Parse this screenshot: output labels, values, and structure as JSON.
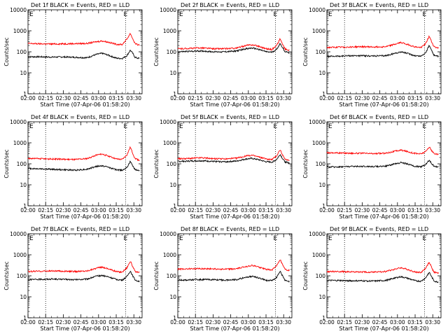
{
  "figure": {
    "x_tick_labels": [
      "02:00",
      "02:15",
      "02:30",
      "02:45",
      "03:00",
      "03:15",
      "03:30"
    ],
    "x_label": "Start Time (07-Apr-06 01:58:20)",
    "y_label": "Counts/sec",
    "y_tick_labels": [
      "1",
      "10",
      "100",
      "1000",
      "10000"
    ],
    "edge_marker_left": "E",
    "edge_marker_right": "E",
    "colors": {
      "events": "#000000",
      "lld": "#ff0000",
      "guides": "#000000"
    }
  },
  "chart_data": [
    {
      "type": "line",
      "title": "Det 1f BLACK = Events, RED = LLD",
      "x_unit": "minutes after 02:00",
      "xlim": [
        0,
        97
      ],
      "ylim": [
        1,
        10000
      ],
      "log_y": true,
      "guide_lines_x": [
        15,
        83
      ],
      "series": [
        {
          "name": "Events",
          "color": "#000000",
          "x": [
            0,
            10,
            20,
            30,
            40,
            50,
            58,
            63,
            68,
            75,
            80,
            84,
            87,
            89,
            91,
            93,
            95
          ],
          "y": [
            58,
            58,
            56,
            57,
            55,
            52,
            75,
            85,
            70,
            50,
            48,
            65,
            120,
            85,
            55,
            50,
            48
          ]
        },
        {
          "name": "LLD",
          "color": "#ff0000",
          "x": [
            0,
            10,
            20,
            30,
            40,
            50,
            58,
            63,
            68,
            75,
            80,
            84,
            87,
            89,
            91,
            93,
            95
          ],
          "y": [
            250,
            240,
            235,
            240,
            245,
            250,
            300,
            330,
            290,
            230,
            220,
            400,
            750,
            420,
            250,
            220,
            210
          ]
        }
      ]
    },
    {
      "type": "line",
      "title": "Det 2f BLACK = Events, RED = LLD",
      "x_unit": "minutes after 02:00",
      "xlim": [
        0,
        97
      ],
      "ylim": [
        1,
        10000
      ],
      "log_y": true,
      "guide_lines_x": [
        15,
        83
      ],
      "series": [
        {
          "name": "Events",
          "color": "#000000",
          "x": [
            0,
            10,
            20,
            30,
            40,
            50,
            58,
            63,
            68,
            75,
            80,
            84,
            87,
            89,
            91,
            93,
            95
          ],
          "y": [
            100,
            105,
            110,
            100,
            100,
            110,
            140,
            150,
            135,
            100,
            95,
            130,
            250,
            160,
            105,
            95,
            90
          ]
        },
        {
          "name": "LLD",
          "color": "#ff0000",
          "x": [
            0,
            10,
            20,
            30,
            40,
            50,
            58,
            63,
            68,
            75,
            80,
            84,
            87,
            89,
            91,
            93,
            95
          ],
          "y": [
            140,
            145,
            155,
            140,
            140,
            150,
            200,
            215,
            190,
            140,
            130,
            200,
            420,
            230,
            140,
            125,
            120
          ]
        }
      ]
    },
    {
      "type": "line",
      "title": "Det 3f BLACK = Events, RED = LLD",
      "x_unit": "minutes after 02:00",
      "xlim": [
        0,
        97
      ],
      "ylim": [
        1,
        10000
      ],
      "log_y": true,
      "guide_lines_x": [
        15,
        83
      ],
      "series": [
        {
          "name": "Events",
          "color": "#000000",
          "x": [
            0,
            10,
            20,
            30,
            40,
            50,
            58,
            63,
            68,
            75,
            80,
            84,
            87,
            89,
            91,
            93,
            95
          ],
          "y": [
            60,
            62,
            65,
            65,
            63,
            65,
            85,
            100,
            85,
            65,
            62,
            90,
            200,
            120,
            70,
            62,
            60
          ]
        },
        {
          "name": "LLD",
          "color": "#ff0000",
          "x": [
            0,
            10,
            20,
            30,
            40,
            50,
            58,
            63,
            68,
            75,
            80,
            84,
            87,
            89,
            91,
            93,
            95
          ],
          "y": [
            160,
            165,
            170,
            175,
            170,
            175,
            230,
            280,
            230,
            170,
            160,
            250,
            550,
            300,
            180,
            160,
            150
          ]
        }
      ]
    },
    {
      "type": "line",
      "title": "Det 4f BLACK = Events, RED = LLD",
      "x_unit": "minutes after 02:00",
      "xlim": [
        0,
        97
      ],
      "ylim": [
        1,
        10000
      ],
      "log_y": true,
      "guide_lines_x": [
        15,
        83
      ],
      "series": [
        {
          "name": "Events",
          "color": "#000000",
          "x": [
            0,
            10,
            20,
            30,
            40,
            50,
            58,
            63,
            68,
            75,
            80,
            84,
            87,
            89,
            91,
            93,
            95
          ],
          "y": [
            60,
            58,
            55,
            52,
            50,
            55,
            75,
            80,
            70,
            52,
            50,
            65,
            130,
            80,
            55,
            50,
            48
          ]
        },
        {
          "name": "LLD",
          "color": "#ff0000",
          "x": [
            0,
            10,
            20,
            30,
            40,
            50,
            58,
            63,
            68,
            75,
            80,
            84,
            87,
            89,
            91,
            93,
            95
          ],
          "y": [
            180,
            175,
            170,
            165,
            160,
            175,
            260,
            290,
            240,
            170,
            160,
            260,
            620,
            320,
            180,
            160,
            150
          ]
        }
      ]
    },
    {
      "type": "line",
      "title": "Det 5f BLACK = Events, RED = LLD",
      "x_unit": "minutes after 02:00",
      "xlim": [
        0,
        97
      ],
      "ylim": [
        1,
        10000
      ],
      "log_y": true,
      "guide_lines_x": [
        15,
        83
      ],
      "series": [
        {
          "name": "Events",
          "color": "#000000",
          "x": [
            0,
            10,
            20,
            30,
            40,
            50,
            58,
            63,
            68,
            75,
            80,
            84,
            87,
            89,
            91,
            93,
            95
          ],
          "y": [
            130,
            135,
            140,
            130,
            125,
            135,
            170,
            180,
            160,
            125,
            120,
            160,
            280,
            180,
            125,
            115,
            110
          ]
        },
        {
          "name": "LLD",
          "color": "#ff0000",
          "x": [
            0,
            10,
            20,
            30,
            40,
            50,
            58,
            63,
            68,
            75,
            80,
            84,
            87,
            89,
            91,
            93,
            95
          ],
          "y": [
            175,
            180,
            195,
            175,
            170,
            185,
            235,
            255,
            220,
            170,
            160,
            240,
            480,
            260,
            165,
            150,
            145
          ]
        }
      ]
    },
    {
      "type": "line",
      "title": "Det 6f BLACK = Events, RED = LLD",
      "x_unit": "minutes after 02:00",
      "xlim": [
        0,
        97
      ],
      "ylim": [
        1,
        10000
      ],
      "log_y": true,
      "guide_lines_x": [
        15,
        83
      ],
      "series": [
        {
          "name": "Events",
          "color": "#000000",
          "x": [
            0,
            10,
            20,
            30,
            40,
            50,
            58,
            63,
            68,
            75,
            80,
            84,
            87,
            89,
            91,
            93,
            95
          ],
          "y": [
            70,
            72,
            75,
            76,
            74,
            78,
            100,
            115,
            100,
            76,
            72,
            95,
            150,
            105,
            78,
            72,
            70
          ]
        },
        {
          "name": "LLD",
          "color": "#ff0000",
          "x": [
            0,
            10,
            20,
            30,
            40,
            50,
            58,
            63,
            68,
            75,
            80,
            84,
            87,
            89,
            91,
            93,
            95
          ],
          "y": [
            340,
            330,
            320,
            315,
            305,
            320,
            400,
            450,
            390,
            310,
            300,
            380,
            650,
            420,
            310,
            290,
            285
          ]
        }
      ]
    },
    {
      "type": "line",
      "title": "Det 7f BLACK = Events, RED = LLD",
      "x_unit": "minutes after 02:00",
      "xlim": [
        0,
        97
      ],
      "ylim": [
        1,
        10000
      ],
      "log_y": true,
      "guide_lines_x": [
        15,
        83
      ],
      "series": [
        {
          "name": "Events",
          "color": "#000000",
          "x": [
            0,
            10,
            20,
            30,
            40,
            50,
            58,
            63,
            68,
            75,
            80,
            84,
            87,
            89,
            91,
            93,
            95
          ],
          "y": [
            65,
            68,
            70,
            68,
            65,
            70,
            95,
            105,
            90,
            68,
            62,
            90,
            170,
            100,
            65,
            58,
            55
          ]
        },
        {
          "name": "LLD",
          "color": "#ff0000",
          "x": [
            0,
            10,
            20,
            30,
            40,
            50,
            58,
            63,
            68,
            75,
            80,
            84,
            87,
            89,
            91,
            93,
            95
          ],
          "y": [
            160,
            165,
            170,
            165,
            160,
            170,
            230,
            260,
            220,
            160,
            150,
            240,
            500,
            280,
            160,
            145,
            140
          ]
        }
      ]
    },
    {
      "type": "line",
      "title": "Det 8f BLACK = Events, RED = LLD",
      "x_unit": "minutes after 02:00",
      "xlim": [
        0,
        97
      ],
      "ylim": [
        1,
        10000
      ],
      "log_y": true,
      "guide_lines_x": [
        15,
        83
      ],
      "series": [
        {
          "name": "Events",
          "color": "#000000",
          "x": [
            0,
            10,
            20,
            30,
            40,
            50,
            58,
            63,
            68,
            75,
            80,
            84,
            87,
            89,
            91,
            93,
            95
          ],
          "y": [
            62,
            64,
            66,
            66,
            62,
            66,
            85,
            95,
            82,
            62,
            58,
            85,
            170,
            100,
            62,
            55,
            52
          ]
        },
        {
          "name": "LLD",
          "color": "#ff0000",
          "x": [
            0,
            10,
            20,
            30,
            40,
            50,
            58,
            63,
            68,
            75,
            80,
            84,
            87,
            89,
            91,
            93,
            95
          ],
          "y": [
            210,
            215,
            220,
            215,
            205,
            215,
            280,
            310,
            270,
            205,
            190,
            300,
            600,
            340,
            205,
            185,
            180
          ]
        }
      ]
    },
    {
      "type": "line",
      "title": "Det 9f BLACK = Events, RED = LLD",
      "x_unit": "minutes after 02:00",
      "xlim": [
        0,
        97
      ],
      "ylim": [
        1,
        10000
      ],
      "log_y": true,
      "guide_lines_x": [
        15,
        83
      ],
      "series": [
        {
          "name": "Events",
          "color": "#000000",
          "x": [
            0,
            10,
            20,
            30,
            40,
            50,
            58,
            63,
            68,
            75,
            80,
            84,
            87,
            89,
            91,
            93,
            95
          ],
          "y": [
            60,
            60,
            58,
            58,
            56,
            60,
            80,
            90,
            78,
            58,
            55,
            80,
            150,
            90,
            58,
            52,
            50
          ]
        },
        {
          "name": "LLD",
          "color": "#ff0000",
          "x": [
            0,
            10,
            20,
            30,
            40,
            50,
            58,
            63,
            68,
            75,
            80,
            84,
            87,
            89,
            91,
            93,
            95
          ],
          "y": [
            160,
            160,
            155,
            150,
            150,
            160,
            210,
            240,
            205,
            150,
            145,
            230,
            460,
            250,
            150,
            140,
            135
          ]
        }
      ]
    }
  ]
}
